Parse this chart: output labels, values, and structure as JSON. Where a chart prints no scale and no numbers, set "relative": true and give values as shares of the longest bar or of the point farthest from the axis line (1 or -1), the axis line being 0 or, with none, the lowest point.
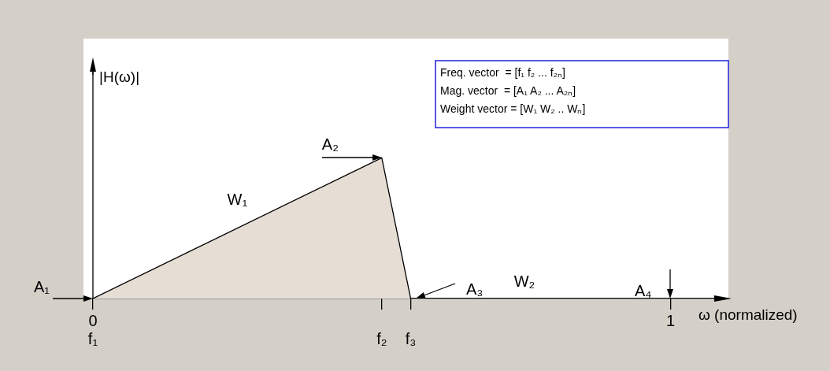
{
  "chart_data": {
    "type": "area",
    "relative": true,
    "xlabel": "ω (normalized)",
    "ylabel": "|H(ω)|",
    "x": [
      0,
      0.5,
      0.55
    ],
    "series": [
      {
        "color": "#e6ddd4",
        "values": [
          0,
          1,
          0
        ]
      }
    ],
    "xlim": [
      0,
      1.1
    ],
    "xticks": [
      0,
      {
        "value": 0.5,
        "label": null
      },
      {
        "value": 0.55,
        "label": null
      },
      1
    ],
    "grid": false,
    "legend": false,
    "marker": "none",
    "annotations": [
      {
        "text": "A₁",
        "x": 0,
        "y": 0
      },
      {
        "text": "A₂",
        "x": 0.5,
        "y": 1
      },
      "A₃",
      "A₄",
      {
        "text": "W₁",
        "x": 0.25,
        "y": 0.5
      },
      "W₂",
      {
        "text": "f₁",
        "x": 0,
        "y": 0
      },
      {
        "text": "f₂",
        "x": 0.5,
        "y": 0
      },
      {
        "text": "f₃",
        "x": 0.55,
        "y": 0
      },
      "Freq. vector  = [f₁ f₂ ... f₂ₙ]",
      "Mag. vector  = [A₁ A₂ ... A₂ₙ]",
      "Weight vector = [W₁ W₂ .. Wₙ]"
    ]
  }
}
